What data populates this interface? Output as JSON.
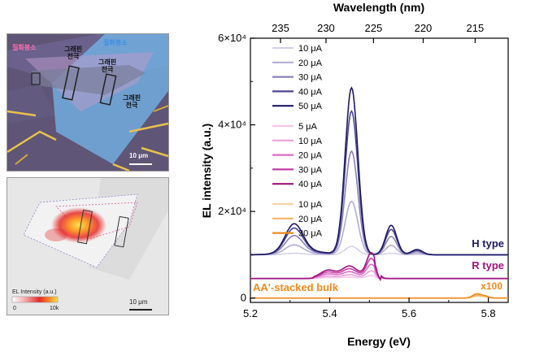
{
  "micrograph": {
    "label_hbn_left": "질화붕소",
    "label_hbn_right": "질화붕소",
    "label_graphene_1": "그래핀\n전극",
    "label_graphene_2": "그래핀\n전극",
    "label_graphene_3": "그래핀\n전극",
    "scale_bar": "10 μm"
  },
  "el_map": {
    "colorbar_title": "EL Intensity (a.u.)",
    "colorbar_min": "0",
    "colorbar_max": "10k",
    "scale_bar": "10 μm"
  },
  "colors": {
    "h_type": "#1e1a66",
    "r_type": "#a0127e",
    "bulk": "#ee8a1a"
  },
  "chart_data": {
    "type": "line",
    "xlabel": "Energy (eV)",
    "ylabel": "EL intensity (a.u.)",
    "top_axis_label": "Wavelength (nm)",
    "xlim": [
      5.2,
      5.85
    ],
    "ylim": [
      -1000,
      60000
    ],
    "x_ticks": [
      "5.2",
      "5.4",
      "5.6",
      "5.8"
    ],
    "y_ticks": [
      "0",
      "2×10⁴",
      "4×10⁴",
      "6×10⁴"
    ],
    "top_ticks": [
      {
        "nm": 235,
        "label": "235"
      },
      {
        "nm": 230,
        "label": "230"
      },
      {
        "nm": 225,
        "label": "225"
      },
      {
        "nm": 220,
        "label": "220"
      },
      {
        "nm": 215,
        "label": "215"
      }
    ],
    "group_labels": {
      "h": "H type",
      "r": "R type",
      "bulk": "AA'-stacked bulk",
      "bulk_scale": "x100"
    },
    "series": [
      {
        "name": "10 μA",
        "group": "h",
        "color": "#d6d2e8",
        "amp": 0.05
      },
      {
        "name": "20 μA",
        "group": "h",
        "color": "#b3acd4",
        "amp": 0.32
      },
      {
        "name": "30 μA",
        "group": "h",
        "color": "#8a82b8",
        "amp": 0.62
      },
      {
        "name": "40 μA",
        "group": "h",
        "color": "#4a4590",
        "amp": 0.86
      },
      {
        "name": "50 μA",
        "group": "h",
        "color": "#1e1a66",
        "amp": 1.0
      },
      {
        "name": "5 μA",
        "group": "r",
        "color": "#f6c6ec",
        "amp": 0.12
      },
      {
        "name": "10 μA",
        "group": "r",
        "color": "#eca0dc",
        "amp": 0.3
      },
      {
        "name": "20 μA",
        "group": "r",
        "color": "#dc6cc6",
        "amp": 0.55
      },
      {
        "name": "30 μA",
        "group": "r",
        "color": "#c23ea6",
        "amp": 0.78
      },
      {
        "name": "40 μA",
        "group": "r",
        "color": "#a0127e",
        "amp": 1.0
      },
      {
        "name": "10 μA",
        "group": "bulk",
        "color": "#f7d3a4",
        "amp": 0.4
      },
      {
        "name": "20 μA",
        "group": "bulk",
        "color": "#f4b565",
        "amp": 0.7
      },
      {
        "name": "30 μA",
        "group": "bulk",
        "color": "#ee8a1a",
        "amp": 1.0
      }
    ],
    "h_peaks": [
      {
        "e": 5.31,
        "height": 6500
      },
      {
        "e": 5.455,
        "height": 38500
      },
      {
        "e": 5.555,
        "height": 6800
      },
      {
        "e": 5.62,
        "height": 1200
      }
    ],
    "h_baseline": 10000,
    "r_peaks": [
      {
        "e": 5.395,
        "height": 1500
      },
      {
        "e": 5.45,
        "height": 2200
      },
      {
        "e": 5.505,
        "height": 5500
      }
    ],
    "r_baseline": 4500,
    "bulk_peaks": [
      {
        "e": 5.77,
        "height": 900
      },
      {
        "e": 5.79,
        "height": 500
      }
    ],
    "bulk_baseline": 0
  }
}
